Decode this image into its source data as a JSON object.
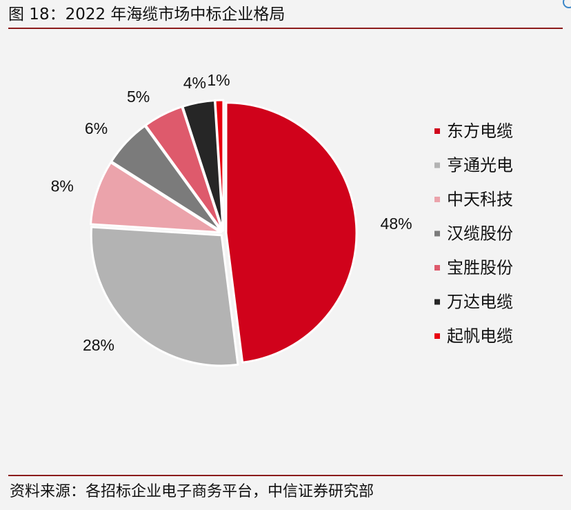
{
  "header": {
    "title": "图 18：2022 年海缆市场中标企业格局"
  },
  "chart_data": {
    "type": "pie",
    "title": "图 18：2022 年海缆市场中标企业格局",
    "unit": "%",
    "legend_position": "right",
    "slices": [
      {
        "name": "东方电缆",
        "value": 48,
        "label": "48%",
        "color": "#d0021b"
      },
      {
        "name": "亨通光电",
        "value": 28,
        "label": "28%",
        "color": "#b3b3b3"
      },
      {
        "name": "中天科技",
        "value": 8,
        "label": "8%",
        "color": "#eba3ab"
      },
      {
        "name": "汉缆股份",
        "value": 6,
        "label": "6%",
        "color": "#7b7b7b"
      },
      {
        "name": "宝胜股份",
        "value": 5,
        "label": "5%",
        "color": "#de5a6c"
      },
      {
        "name": "万达电缆",
        "value": 4,
        "label": "4%",
        "color": "#262626"
      },
      {
        "name": "起帆电缆",
        "value": 1,
        "label": "1%",
        "color": "#e8000f"
      }
    ]
  },
  "footer": {
    "source": "资料来源：各招标企业电子商务平台，中信证券研究部"
  }
}
